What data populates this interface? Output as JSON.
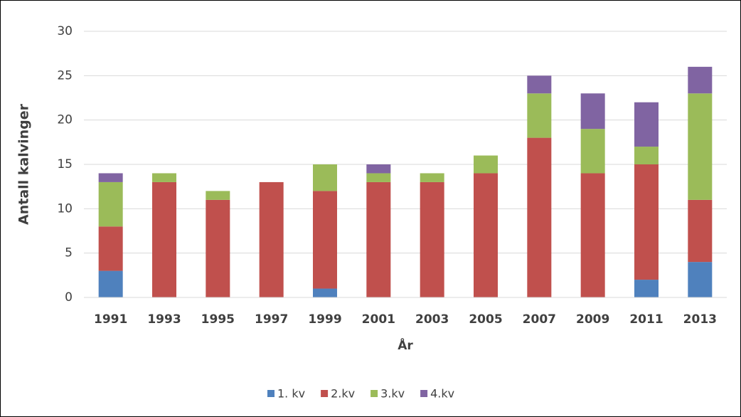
{
  "chart_data": {
    "type": "stacked_bar",
    "x_label": "År",
    "y_label": "Antall kalvinger",
    "categories": [
      "1991",
      "1993",
      "1995",
      "1997",
      "1999",
      "2001",
      "2003",
      "2005",
      "2007",
      "2009",
      "2011",
      "2013"
    ],
    "series": [
      {
        "name": "1. kv",
        "color": "#4f81bd",
        "values": [
          3,
          0,
          0,
          0,
          1,
          0,
          0,
          0,
          0,
          0,
          2,
          4
        ]
      },
      {
        "name": "2.kv",
        "color": "#c0504d",
        "values": [
          5,
          13,
          11,
          13,
          11,
          13,
          13,
          14,
          18,
          14,
          13,
          7
        ]
      },
      {
        "name": "3.kv",
        "color": "#9bbb59",
        "values": [
          5,
          1,
          1,
          0,
          3,
          1,
          1,
          2,
          5,
          5,
          2,
          12
        ]
      },
      {
        "name": "4.kv",
        "color": "#8064a2",
        "values": [
          1,
          0,
          0,
          0,
          0,
          1,
          0,
          0,
          2,
          4,
          5,
          3
        ]
      }
    ],
    "ylim": [
      0,
      30
    ],
    "yticks": [
      0,
      5,
      10,
      15,
      20,
      25,
      30
    ],
    "grid": true,
    "legend": "bottom"
  }
}
